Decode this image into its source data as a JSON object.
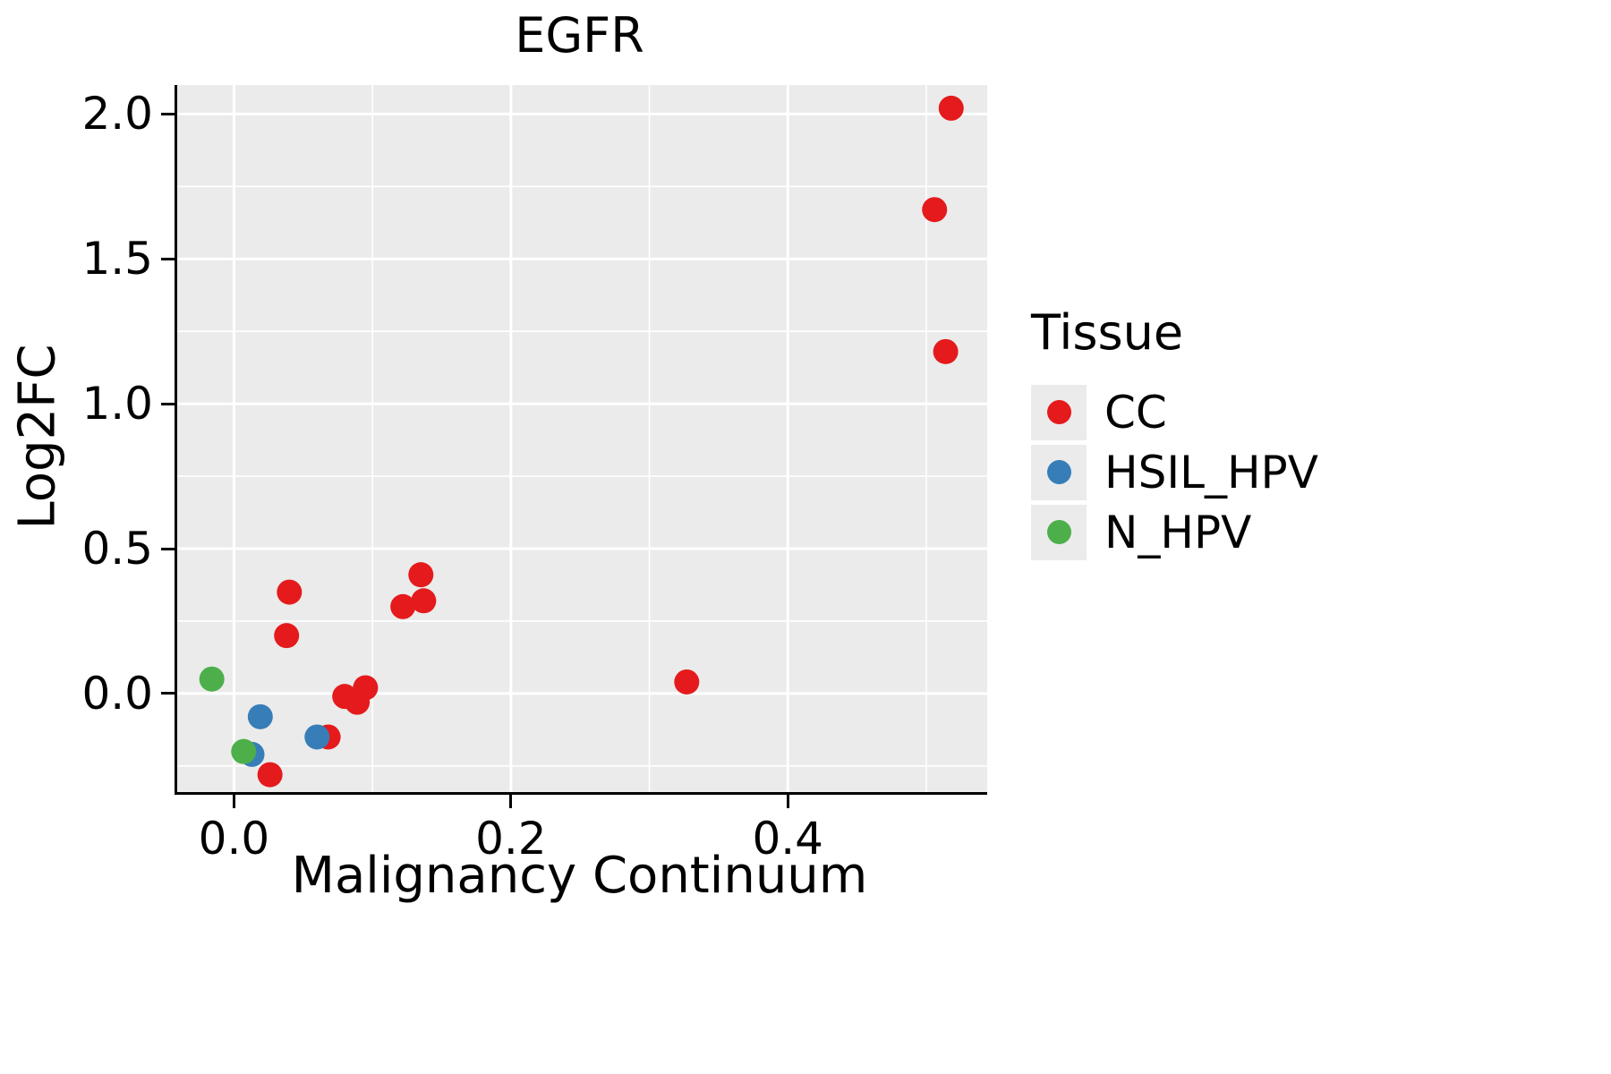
{
  "title": "EGFR",
  "colors": {
    "panel_background": "#EBEBEB",
    "grid": "#FFFFFF",
    "axis": "#000000",
    "cc": "#E41A1C",
    "hsil_hpv": "#377EB8",
    "n_hpv": "#4DAF4A"
  },
  "chart_data": {
    "type": "scatter",
    "title": "EGFR",
    "xlabel": "Malignancy Continuum",
    "ylabel": "Log2FC",
    "xlim": [
      -0.041,
      0.544
    ],
    "ylim": [
      -0.34,
      2.1
    ],
    "x_ticks": [
      0.0,
      0.2,
      0.4
    ],
    "x_tick_labels": [
      "0.0",
      "0.2",
      "0.4"
    ],
    "x_minor_ticks": [
      0.1,
      0.3,
      0.5
    ],
    "y_ticks": [
      0.0,
      0.5,
      1.0,
      1.5,
      2.0
    ],
    "y_tick_labels": [
      "0.0",
      "0.5",
      "1.0",
      "1.5",
      "2.0"
    ],
    "y_minor_ticks": [
      -0.25,
      0.25,
      0.75,
      1.25,
      1.75
    ],
    "grid": true,
    "legend_title": "Tissue",
    "legend_position": "right",
    "point_radius": 14,
    "series": [
      {
        "name": "CC",
        "color": "#E41A1C",
        "points": [
          [
            0.518,
            2.02
          ],
          [
            0.506,
            1.67
          ],
          [
            0.514,
            1.18
          ],
          [
            0.327,
            0.04
          ],
          [
            0.135,
            0.41
          ],
          [
            0.137,
            0.32
          ],
          [
            0.122,
            0.3
          ],
          [
            0.04,
            0.35
          ],
          [
            0.038,
            0.2
          ],
          [
            0.095,
            0.02
          ],
          [
            0.08,
            -0.01
          ],
          [
            0.089,
            -0.03
          ],
          [
            0.068,
            -0.15
          ],
          [
            0.026,
            -0.28
          ]
        ]
      },
      {
        "name": "HSIL_HPV",
        "color": "#377EB8",
        "points": [
          [
            0.019,
            -0.08
          ],
          [
            0.06,
            -0.15
          ],
          [
            0.013,
            -0.21
          ]
        ]
      },
      {
        "name": "N_HPV",
        "color": "#4DAF4A",
        "points": [
          [
            -0.016,
            0.05
          ],
          [
            0.007,
            -0.2
          ]
        ]
      }
    ]
  }
}
